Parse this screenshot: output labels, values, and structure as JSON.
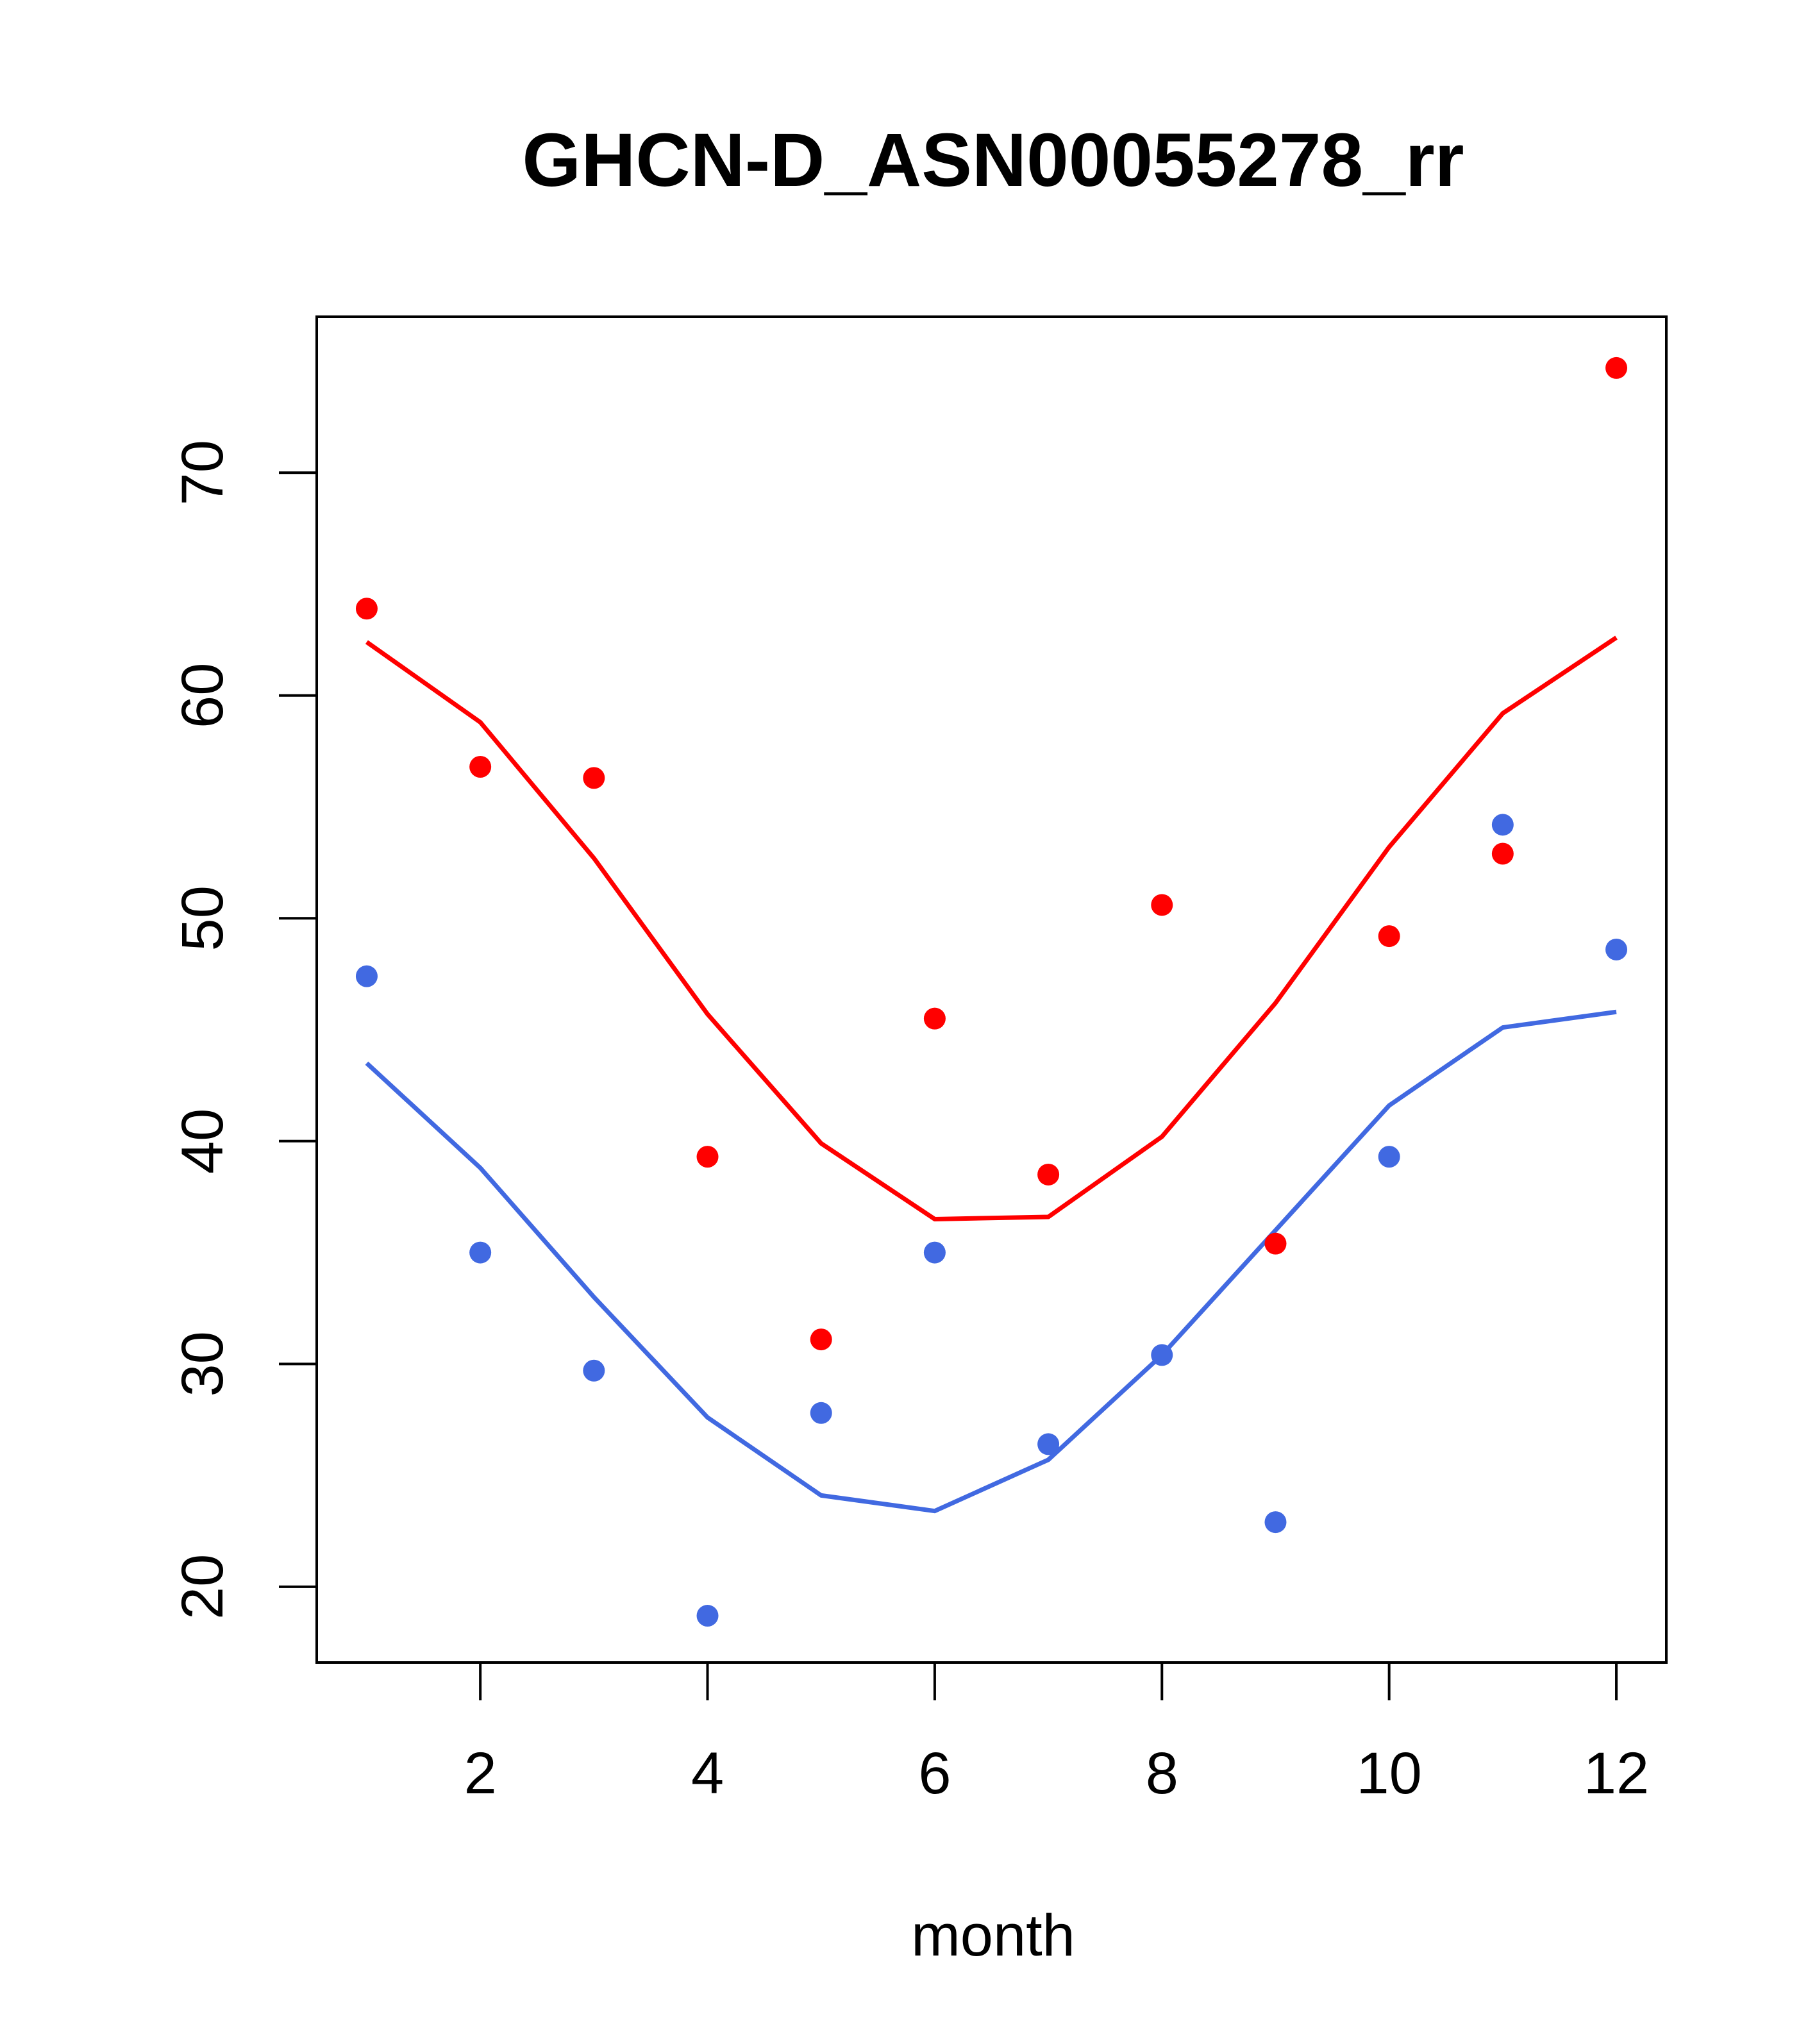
{
  "chart_data": {
    "type": "scatter",
    "title": "GHCN-D_ASN00055278_rr",
    "xlabel": "month",
    "ylabel": "",
    "xlim": [
      0.56,
      12.44
    ],
    "ylim": [
      16.6,
      77.0
    ],
    "x_ticks": [
      2,
      4,
      6,
      8,
      10,
      12
    ],
    "y_ticks": [
      20,
      30,
      40,
      50,
      60,
      70
    ],
    "grid": false,
    "legend": "none",
    "x": [
      1,
      2,
      3,
      4,
      5,
      6,
      7,
      8,
      9,
      10,
      11,
      12
    ],
    "series": [
      {
        "color": "#ff0000",
        "points": [
          63.9,
          56.8,
          56.3,
          39.3,
          31.1,
          45.5,
          38.5,
          50.6,
          35.4,
          49.2,
          52.9,
          74.7
        ],
        "line": [
          62.4,
          58.8,
          52.7,
          45.7,
          39.9,
          36.5,
          36.6,
          40.2,
          46.2,
          53.2,
          59.2,
          62.6
        ]
      },
      {
        "color": "#4169e1",
        "points": [
          47.4,
          35.0,
          29.7,
          18.7,
          27.8,
          35.0,
          26.4,
          30.4,
          22.9,
          39.3,
          54.2,
          48.6
        ],
        "line": [
          43.5,
          38.8,
          33.0,
          27.6,
          24.1,
          23.4,
          25.7,
          30.4,
          36.0,
          41.6,
          45.1,
          45.8
        ]
      }
    ]
  }
}
